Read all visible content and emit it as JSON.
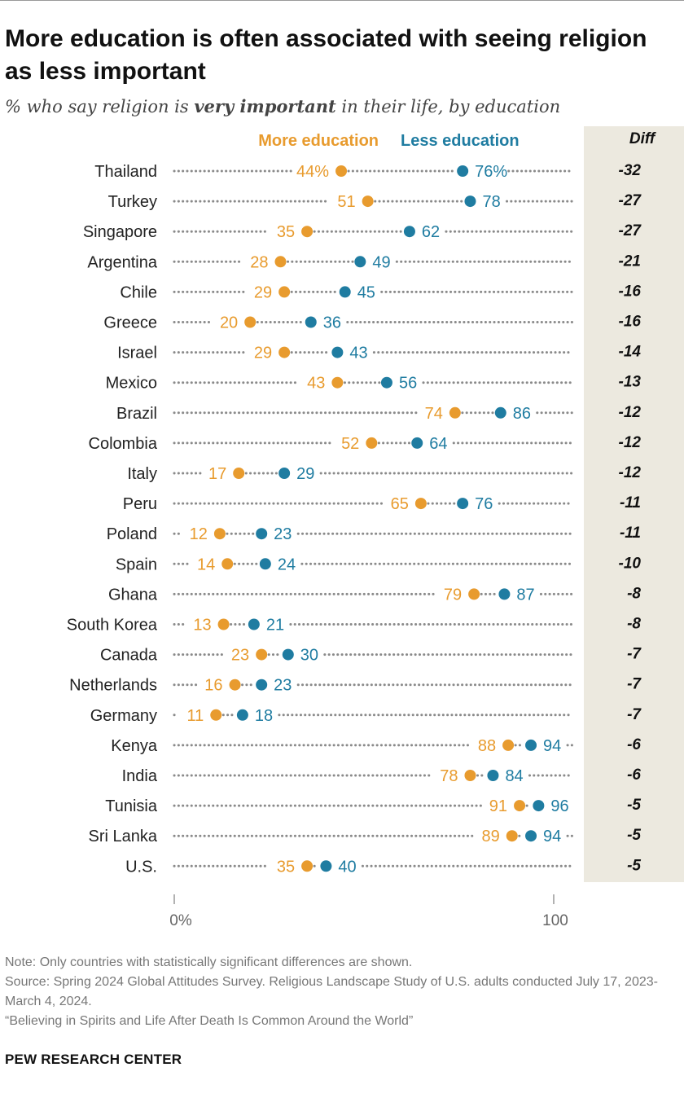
{
  "title": "More education is often associated with seeing religion as less important",
  "subtitle": {
    "prefix": "% who say religion is ",
    "emphasis": "very important",
    "suffix": " in their life, by education"
  },
  "colors": {
    "more": "#E89B2E",
    "less": "#1F7CA1",
    "diff_bg": "#ECE9DF",
    "dotline": "#8a8a8a"
  },
  "chart_data": {
    "type": "dot",
    "legend": {
      "more": "More education",
      "less": "Less education"
    },
    "diff_header": "Diff",
    "xlim": [
      0,
      100
    ],
    "x_ticks": [
      "0%",
      "100"
    ],
    "rows": [
      {
        "country": "Thailand",
        "more": 44,
        "less": 76,
        "diff": "-32",
        "more_label": "44%",
        "less_label": "76%"
      },
      {
        "country": "Turkey",
        "more": 51,
        "less": 78,
        "diff": "-27",
        "more_label": "51",
        "less_label": "78"
      },
      {
        "country": "Singapore",
        "more": 35,
        "less": 62,
        "diff": "-27",
        "more_label": "35",
        "less_label": "62"
      },
      {
        "country": "Argentina",
        "more": 28,
        "less": 49,
        "diff": "-21",
        "more_label": "28",
        "less_label": "49"
      },
      {
        "country": "Chile",
        "more": 29,
        "less": 45,
        "diff": "-16",
        "more_label": "29",
        "less_label": "45"
      },
      {
        "country": "Greece",
        "more": 20,
        "less": 36,
        "diff": "-16",
        "more_label": "20",
        "less_label": "36"
      },
      {
        "country": "Israel",
        "more": 29,
        "less": 43,
        "diff": "-14",
        "more_label": "29",
        "less_label": "43"
      },
      {
        "country": "Mexico",
        "more": 43,
        "less": 56,
        "diff": "-13",
        "more_label": "43",
        "less_label": "56"
      },
      {
        "country": "Brazil",
        "more": 74,
        "less": 86,
        "diff": "-12",
        "more_label": "74",
        "less_label": "86"
      },
      {
        "country": "Colombia",
        "more": 52,
        "less": 64,
        "diff": "-12",
        "more_label": "52",
        "less_label": "64"
      },
      {
        "country": "Italy",
        "more": 17,
        "less": 29,
        "diff": "-12",
        "more_label": "17",
        "less_label": "29"
      },
      {
        "country": "Peru",
        "more": 65,
        "less": 76,
        "diff": "-11",
        "more_label": "65",
        "less_label": "76"
      },
      {
        "country": "Poland",
        "more": 12,
        "less": 23,
        "diff": "-11",
        "more_label": "12",
        "less_label": "23"
      },
      {
        "country": "Spain",
        "more": 14,
        "less": 24,
        "diff": "-10",
        "more_label": "14",
        "less_label": "24"
      },
      {
        "country": "Ghana",
        "more": 79,
        "less": 87,
        "diff": "-8",
        "more_label": "79",
        "less_label": "87"
      },
      {
        "country": "South Korea",
        "more": 13,
        "less": 21,
        "diff": "-8",
        "more_label": "13",
        "less_label": "21"
      },
      {
        "country": "Canada",
        "more": 23,
        "less": 30,
        "diff": "-7",
        "more_label": "23",
        "less_label": "30"
      },
      {
        "country": "Netherlands",
        "more": 16,
        "less": 23,
        "diff": "-7",
        "more_label": "16",
        "less_label": "23"
      },
      {
        "country": "Germany",
        "more": 11,
        "less": 18,
        "diff": "-7",
        "more_label": "11",
        "less_label": "18"
      },
      {
        "country": "Kenya",
        "more": 88,
        "less": 94,
        "diff": "-6",
        "more_label": "88",
        "less_label": "94"
      },
      {
        "country": "India",
        "more": 78,
        "less": 84,
        "diff": "-6",
        "more_label": "78",
        "less_label": "84"
      },
      {
        "country": "Tunisia",
        "more": 91,
        "less": 96,
        "diff": "-5",
        "more_label": "91",
        "less_label": "96"
      },
      {
        "country": "Sri Lanka",
        "more": 89,
        "less": 94,
        "diff": "-5",
        "more_label": "89",
        "less_label": "94"
      },
      {
        "country": "U.S.",
        "more": 35,
        "less": 40,
        "diff": "-5",
        "more_label": "35",
        "less_label": "40"
      }
    ]
  },
  "notes": {
    "note": "Note: Only countries with statistically significant differences are shown.",
    "source": "Source: Spring 2024 Global Attitudes Survey. Religious Landscape Study of U.S. adults conducted July 17, 2023-March 4, 2024.",
    "report": "“Believing in Spirits and Life After Death Is Common Around the World”"
  },
  "brand": "PEW RESEARCH CENTER"
}
